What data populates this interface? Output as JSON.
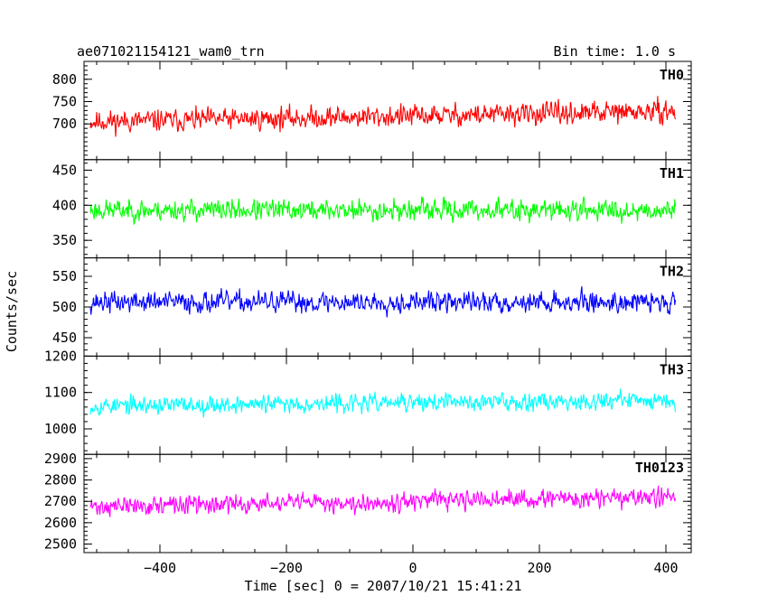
{
  "header": {
    "title": "ae071021154121_wam0_trn",
    "bin_time": "Bin time: 1.0 s"
  },
  "axes": {
    "ylabel": "Counts/sec",
    "xlabel": "Time [sec] 0 = 2007/10/21 15:41:21",
    "x_ticks": [
      -400,
      -200,
      0,
      200,
      400
    ]
  },
  "chart_data": [
    {
      "type": "line",
      "name": "TH0",
      "color": "#ff0000",
      "x_range": [
        -510,
        415
      ],
      "xlim": [
        -520,
        440
      ],
      "ylim": [
        620,
        840
      ],
      "y_ticks": [
        700,
        750,
        800
      ],
      "y_tick_labels": [
        "700",
        "750",
        "800"
      ],
      "y_tick_labels_shown": [
        "700",
        "750",
        "800"
      ],
      "baseline": [
        [
          -510,
          705
        ],
        [
          415,
          728
        ]
      ],
      "noise_amplitude": 45,
      "seed": 11
    },
    {
      "type": "line",
      "name": "TH1",
      "color": "#00ff00",
      "x_range": [
        -510,
        415
      ],
      "xlim": [
        -520,
        440
      ],
      "ylim": [
        325,
        465
      ],
      "y_ticks": [
        350,
        400,
        450
      ],
      "y_tick_labels": [
        "350",
        "400",
        "450"
      ],
      "baseline": [
        [
          -510,
          393
        ],
        [
          415,
          393
        ]
      ],
      "noise_amplitude": 28,
      "seed": 23
    },
    {
      "type": "line",
      "name": "TH2",
      "color": "#0000ff",
      "x_range": [
        -510,
        415
      ],
      "xlim": [
        -520,
        440
      ],
      "ylim": [
        420,
        580
      ],
      "y_ticks": [
        450,
        500,
        550
      ],
      "y_tick_labels": [
        "450",
        "500",
        "550"
      ],
      "baseline": [
        [
          -510,
          508
        ],
        [
          415,
          508
        ]
      ],
      "noise_amplitude": 32,
      "seed": 37
    },
    {
      "type": "line",
      "name": "TH3",
      "color": "#00ffff",
      "x_range": [
        -510,
        415
      ],
      "xlim": [
        -520,
        440
      ],
      "ylim": [
        930,
        1200
      ],
      "y_ticks": [
        1000,
        1100,
        1200
      ],
      "y_tick_labels": [
        "1000",
        "1100",
        "1200"
      ],
      "baseline": [
        [
          -510,
          1063
        ],
        [
          415,
          1080
        ]
      ],
      "noise_amplitude": 45,
      "seed": 53
    },
    {
      "type": "line",
      "name": "TH0123",
      "color": "#ff00ff",
      "x_range": [
        -510,
        415
      ],
      "xlim": [
        -520,
        440
      ],
      "ylim": [
        2460,
        2920
      ],
      "y_ticks": [
        2500,
        2600,
        2700,
        2800,
        2900
      ],
      "y_tick_labels": [
        "2500",
        "2600",
        "2700",
        "2800",
        "2900"
      ],
      "baseline": [
        [
          -510,
          2675
        ],
        [
          415,
          2720
        ]
      ],
      "noise_amplitude": 80,
      "seed": 71
    }
  ]
}
